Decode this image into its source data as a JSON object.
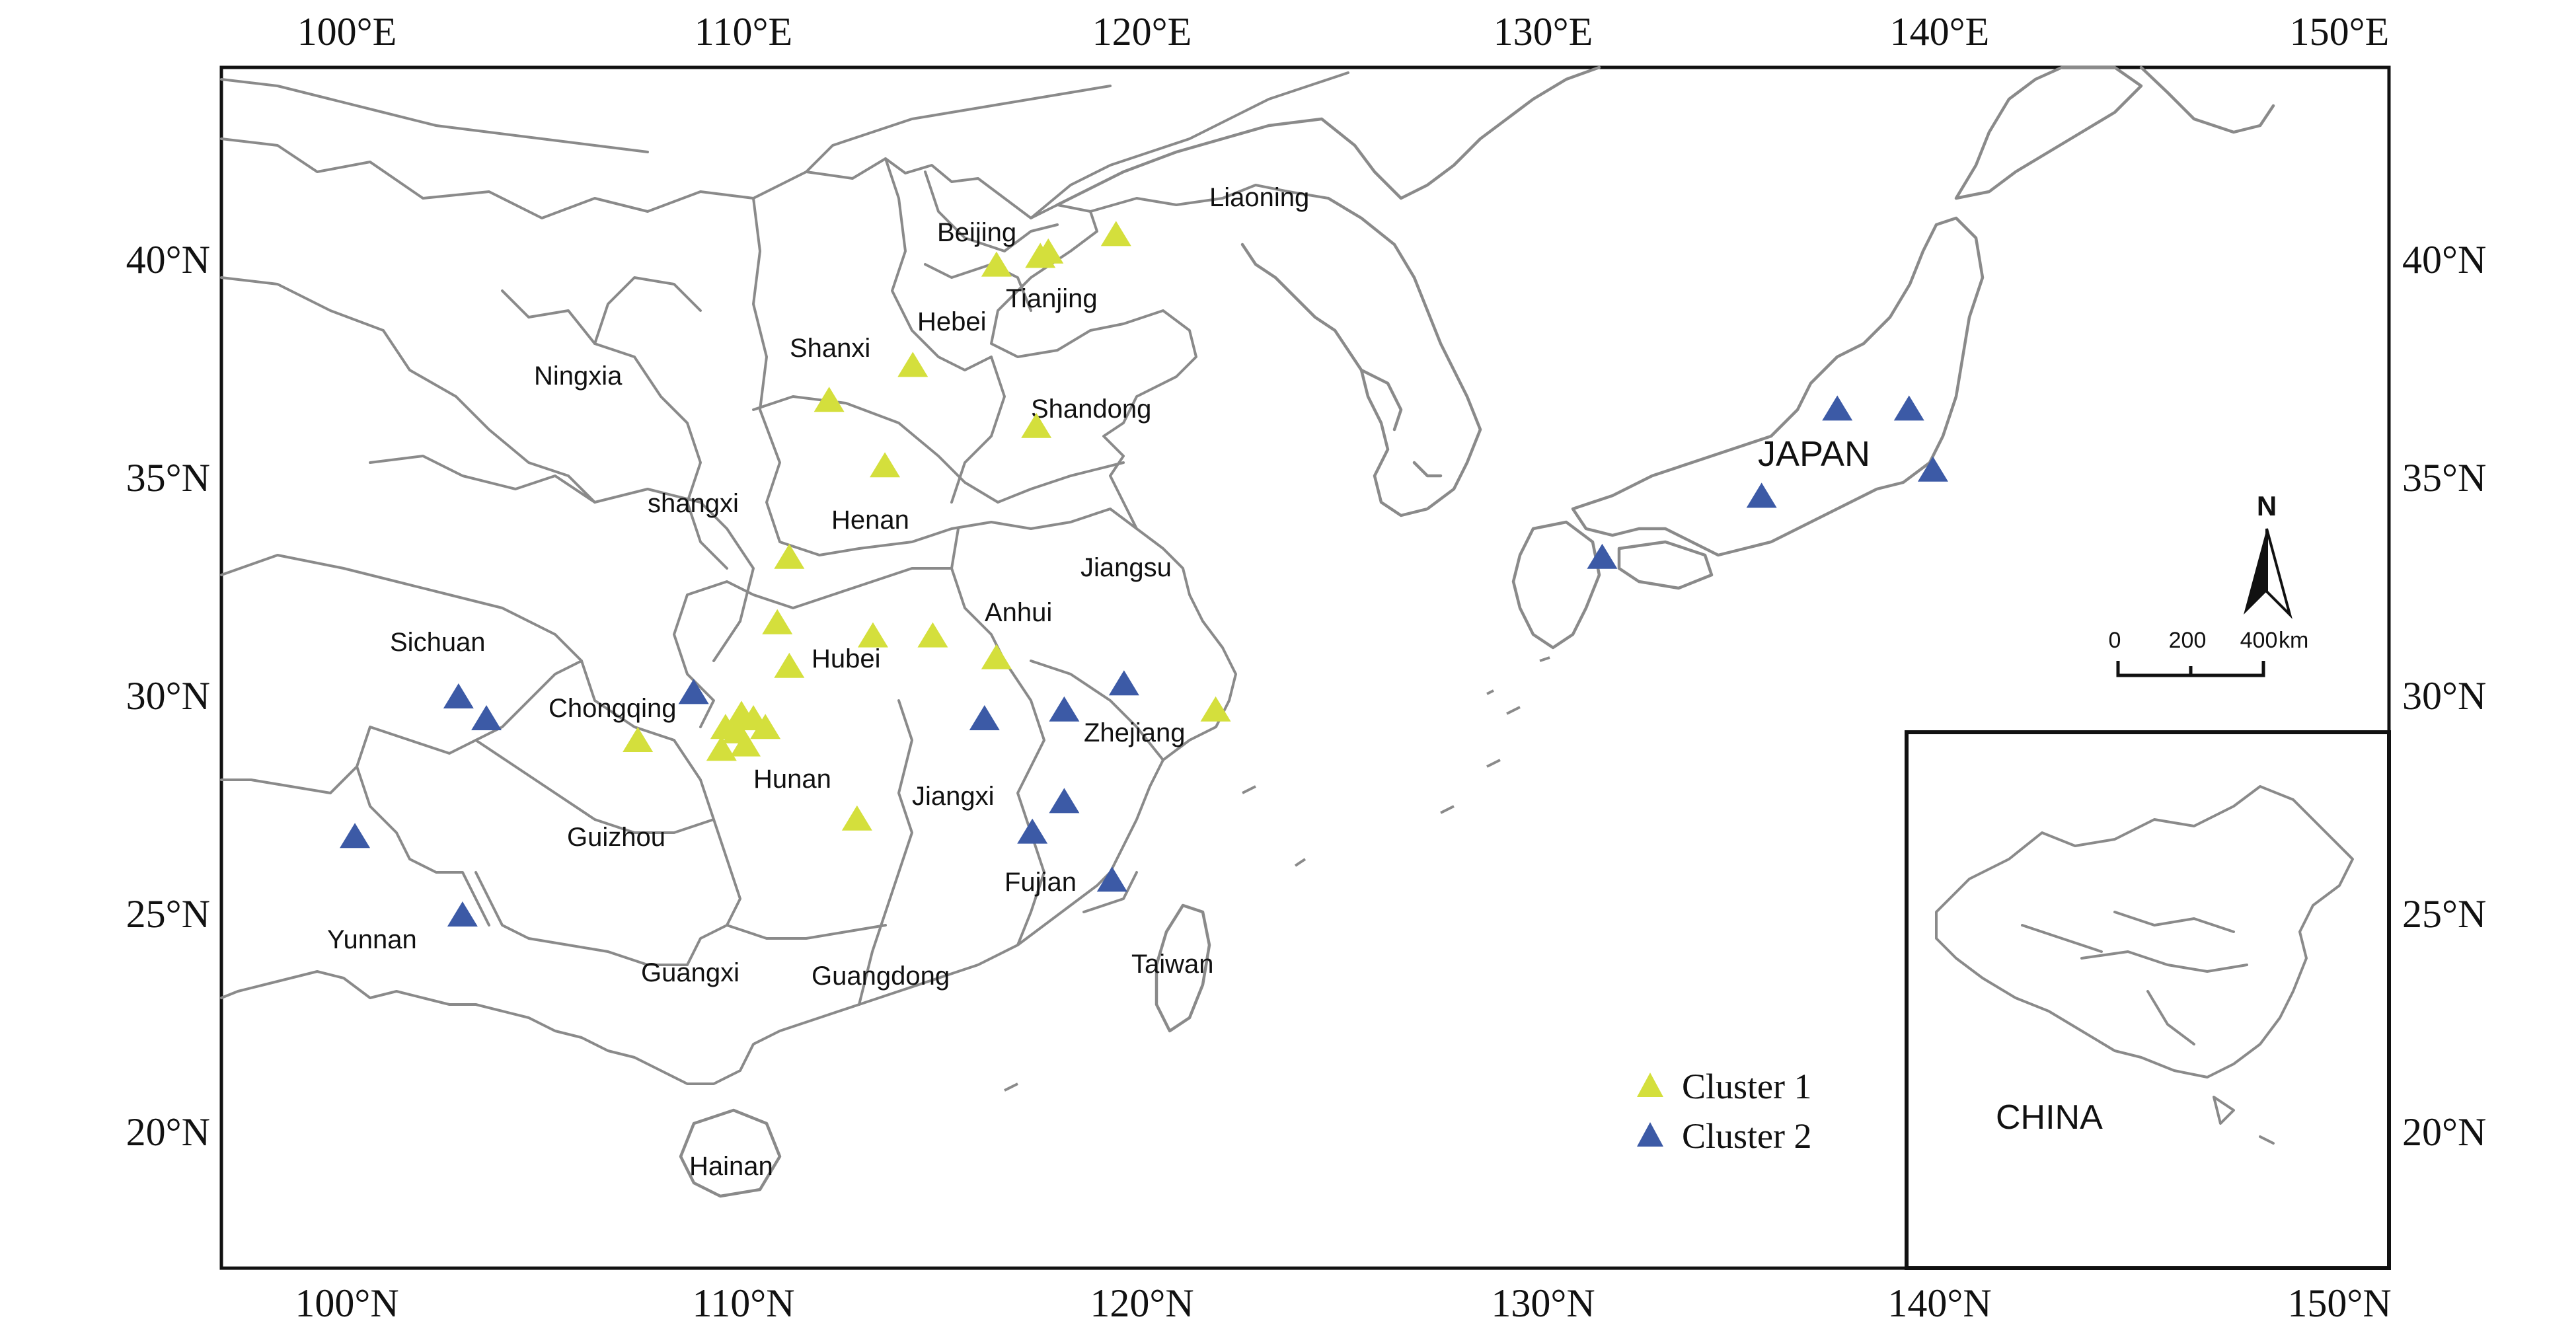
{
  "map": {
    "top_axis_labels": [
      "100°E",
      "110°E",
      "120°E",
      "130°E",
      "140°E",
      "150°E"
    ],
    "bottom_axis_labels": [
      "100°N",
      "110°N",
      "120°N",
      "130°N",
      "140°N",
      "150°N"
    ],
    "left_axis_labels": [
      "40°N",
      "35°N",
      "30°N",
      "25°N",
      "20°N"
    ],
    "right_axis_labels": [
      "40°N",
      "35°N",
      "30°N",
      "25°N",
      "20°N"
    ],
    "regions": [
      {
        "name": "Liaoning"
      },
      {
        "name": "Beijing"
      },
      {
        "name": "Tianjing"
      },
      {
        "name": "Hebei"
      },
      {
        "name": "Shanxi"
      },
      {
        "name": "Ningxia"
      },
      {
        "name": "Shandong"
      },
      {
        "name": "shangxi"
      },
      {
        "name": "Henan"
      },
      {
        "name": "Jiangsu"
      },
      {
        "name": "Anhui"
      },
      {
        "name": "Sichuan"
      },
      {
        "name": "Hubei"
      },
      {
        "name": "Chongqing"
      },
      {
        "name": "Zhejiang"
      },
      {
        "name": "Hunan"
      },
      {
        "name": "Jiangxi"
      },
      {
        "name": "Guizhou"
      },
      {
        "name": "Fujian"
      },
      {
        "name": "Yunnan"
      },
      {
        "name": "Taiwan"
      },
      {
        "name": "Guangxi"
      },
      {
        "name": "Guangdong"
      },
      {
        "name": "Hainan"
      },
      {
        "name": "JAPAN"
      }
    ],
    "legend": [
      {
        "label": "Cluster 1",
        "color": "#d4df3c"
      },
      {
        "label": "Cluster 2",
        "color": "#3c5aa6"
      }
    ],
    "north_label": "N",
    "scale_bar": {
      "labels": [
        "0",
        "200",
        "400"
      ],
      "unit": "km"
    },
    "inset_label": "CHINA",
    "sites_cluster1": [
      {
        "lon": 116.3,
        "lat": 39.9
      },
      {
        "lon": 117.4,
        "lat": 40.1
      },
      {
        "lon": 117.6,
        "lat": 40.2
      },
      {
        "lon": 119.3,
        "lat": 40.6
      },
      {
        "lon": 114.2,
        "lat": 37.6
      },
      {
        "lon": 112.1,
        "lat": 36.8
      },
      {
        "lon": 117.3,
        "lat": 36.2
      },
      {
        "lon": 113.5,
        "lat": 35.3
      },
      {
        "lon": 111.1,
        "lat": 33.2
      },
      {
        "lon": 110.8,
        "lat": 31.7
      },
      {
        "lon": 111.1,
        "lat": 30.7
      },
      {
        "lon": 113.2,
        "lat": 31.4
      },
      {
        "lon": 114.7,
        "lat": 31.4
      },
      {
        "lon": 116.3,
        "lat": 30.9
      },
      {
        "lon": 121.8,
        "lat": 29.7
      },
      {
        "lon": 109.9,
        "lat": 29.6
      },
      {
        "lon": 110.2,
        "lat": 29.5
      },
      {
        "lon": 110.5,
        "lat": 29.3
      },
      {
        "lon": 109.8,
        "lat": 29.2
      },
      {
        "lon": 109.5,
        "lat": 29.3
      },
      {
        "lon": 110.0,
        "lat": 28.9
      },
      {
        "lon": 109.4,
        "lat": 28.8
      },
      {
        "lon": 107.3,
        "lat": 29.0
      },
      {
        "lon": 112.8,
        "lat": 27.2
      }
    ],
    "sites_cluster2": [
      {
        "lon": 102.8,
        "lat": 30.0
      },
      {
        "lon": 103.5,
        "lat": 29.5
      },
      {
        "lon": 100.2,
        "lat": 26.8
      },
      {
        "lon": 102.9,
        "lat": 25.0
      },
      {
        "lon": 108.7,
        "lat": 30.1
      },
      {
        "lon": 116.0,
        "lat": 29.5
      },
      {
        "lon": 118.0,
        "lat": 29.7
      },
      {
        "lon": 119.5,
        "lat": 30.3
      },
      {
        "lon": 118.0,
        "lat": 27.6
      },
      {
        "lon": 117.2,
        "lat": 26.9
      },
      {
        "lon": 119.2,
        "lat": 25.8
      },
      {
        "lon": 131.5,
        "lat": 33.2
      },
      {
        "lon": 135.5,
        "lat": 34.6
      },
      {
        "lon": 137.4,
        "lat": 36.6
      },
      {
        "lon": 139.2,
        "lat": 36.6
      },
      {
        "lon": 139.8,
        "lat": 35.2
      }
    ]
  }
}
